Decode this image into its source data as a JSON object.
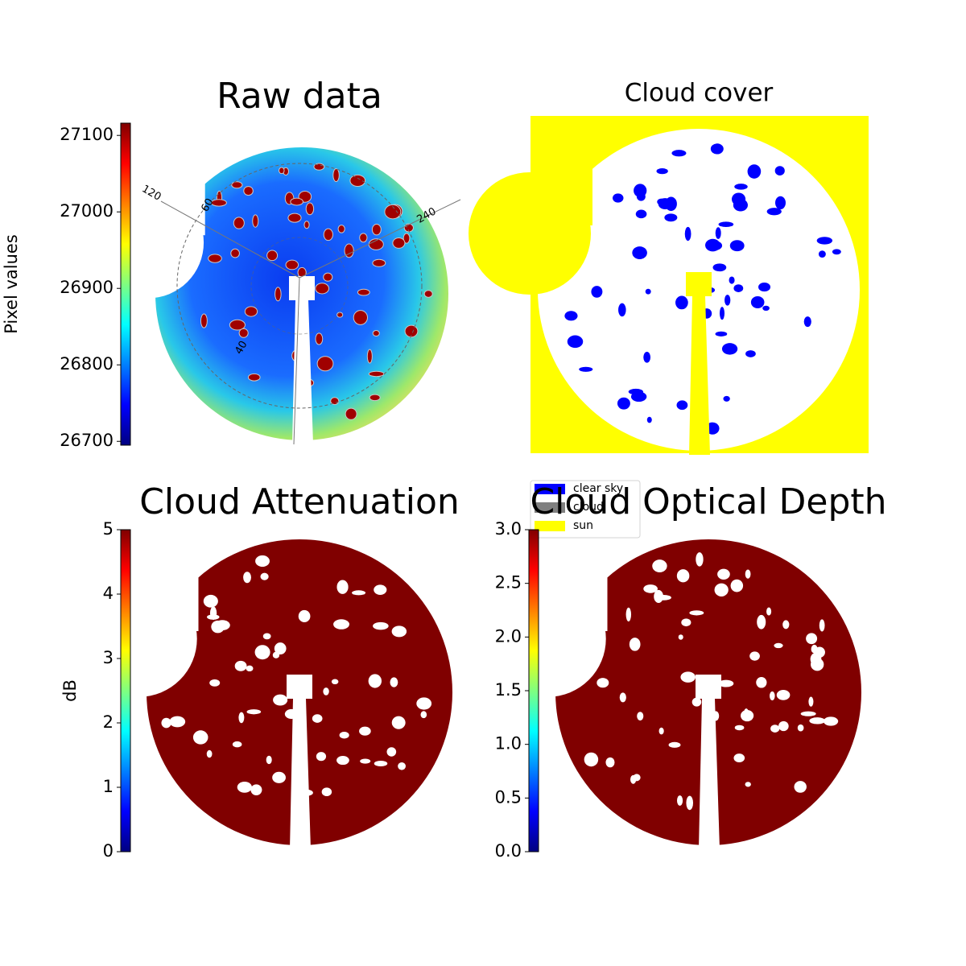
{
  "chart_data": [
    {
      "type": "image",
      "title": "Raw data",
      "ylabel": "Pixel values",
      "ylim": [
        26695,
        27116
      ],
      "yticks": [
        26700,
        26800,
        26900,
        27000,
        27100
      ],
      "annotations": [
        "120",
        "60",
        "240",
        "40"
      ]
    },
    {
      "type": "image",
      "title": "Cloud cover",
      "legend": [
        {
          "name": "clear sky",
          "color": "#0000ff"
        },
        {
          "name": "cloud",
          "color": "#808080"
        },
        {
          "name": "sun",
          "color": "#ffff00"
        }
      ]
    },
    {
      "type": "image",
      "title": "Cloud Attenuation",
      "ylabel": "dB",
      "ylim": [
        0,
        5
      ],
      "yticks": [
        0,
        1,
        2,
        3,
        4,
        5
      ]
    },
    {
      "type": "image",
      "title": "Cloud Optical Depth",
      "ylim": [
        0,
        3
      ],
      "yticks": [
        {
          "value": 0,
          "label": "0.0"
        },
        {
          "value": 0.5,
          "label": "0.5"
        },
        {
          "value": 1,
          "label": "1.0"
        },
        {
          "value": 1.5,
          "label": "1.5"
        },
        {
          "value": 2,
          "label": "2.0"
        },
        {
          "value": 2.5,
          "label": "2.5"
        },
        {
          "value": 3,
          "label": "3.0"
        }
      ]
    }
  ]
}
